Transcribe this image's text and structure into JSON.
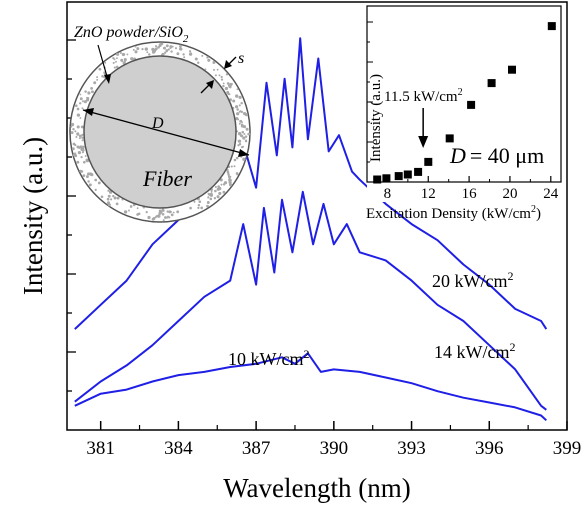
{
  "chart_data": [
    {
      "type": "line",
      "title": "",
      "xlabel": "Wavelength (nm)",
      "ylabel": "Intensity (a.u.)",
      "xlim": [
        379.7,
        399.0
      ],
      "ylim": [
        0,
        5.3
      ],
      "x_ticks": [
        381,
        384,
        387,
        390,
        393,
        396,
        399
      ],
      "y_ticks_labeled": false,
      "grid": false,
      "series": [
        {
          "name": "10 kW/cm2",
          "label_text": "10 kW/cm",
          "label_sup": "2",
          "x": [
            380.0,
            381.0,
            382.0,
            383.0,
            384.0,
            385.0,
            386.0,
            387.0,
            388.0,
            388.5,
            389.0,
            389.5,
            390.0,
            391.0,
            392.0,
            393.0,
            394.0,
            395.0,
            396.0,
            397.0,
            398.0,
            398.2
          ],
          "y": [
            0.3,
            0.45,
            0.5,
            0.6,
            0.68,
            0.72,
            0.78,
            0.82,
            0.9,
            0.82,
            0.95,
            0.72,
            0.75,
            0.72,
            0.65,
            0.58,
            0.48,
            0.4,
            0.34,
            0.28,
            0.18,
            0.12
          ]
        },
        {
          "name": "14 kW/cm2",
          "label_text": "14 kW/cm",
          "label_sup": "2",
          "x": [
            380.0,
            381.0,
            382.0,
            383.0,
            384.0,
            385.0,
            386.0,
            386.5,
            387.0,
            387.3,
            387.7,
            388.0,
            388.4,
            388.8,
            389.2,
            389.6,
            390.0,
            390.5,
            391.0,
            392.0,
            393.0,
            394.0,
            395.0,
            396.0,
            397.0,
            398.0,
            398.2
          ],
          "y": [
            0.35,
            0.6,
            0.8,
            1.05,
            1.35,
            1.65,
            1.85,
            2.55,
            1.8,
            2.75,
            1.95,
            2.85,
            2.2,
            2.95,
            2.3,
            2.8,
            2.3,
            2.55,
            2.2,
            2.1,
            1.85,
            1.55,
            1.35,
            1.05,
            0.75,
            0.3,
            0.25
          ]
        },
        {
          "name": "20 kW/cm2",
          "label_text": "20 kW/cm",
          "label_sup": "2",
          "x": [
            380.0,
            381.0,
            382.0,
            383.0,
            384.0,
            385.0,
            386.0,
            386.5,
            387.0,
            387.4,
            387.8,
            388.1,
            388.4,
            388.7,
            389.0,
            389.4,
            389.8,
            390.2,
            390.7,
            391.0,
            392.0,
            393.0,
            394.0,
            395.0,
            396.0,
            397.0,
            398.0,
            398.2
          ],
          "y": [
            1.25,
            1.55,
            1.85,
            2.3,
            2.6,
            2.9,
            3.1,
            3.55,
            3.0,
            4.3,
            3.4,
            4.35,
            3.5,
            4.85,
            3.6,
            4.6,
            3.45,
            3.65,
            3.2,
            3.1,
            2.8,
            2.55,
            2.35,
            2.05,
            1.8,
            1.5,
            1.35,
            1.25
          ]
        }
      ]
    },
    {
      "type": "scatter",
      "title": "",
      "xlabel": "Excitation Density (kW/cm",
      "xlabel_sup": "2",
      "xlabel_close": ")",
      "ylabel": "Intensity (a.u.)",
      "xlim": [
        6,
        25
      ],
      "ylim": [
        0,
        10.5
      ],
      "x_ticks": [
        8,
        12,
        16,
        20,
        24
      ],
      "y_ticks_labeled": false,
      "grid": false,
      "x": [
        7.0,
        7.9,
        9.1,
        10.0,
        11.0,
        12.0,
        14.1,
        16.2,
        18.2,
        20.2,
        24.1
      ],
      "y": [
        0.15,
        0.22,
        0.35,
        0.45,
        0.6,
        1.2,
        2.6,
        4.6,
        5.9,
        6.7,
        9.3
      ],
      "annotation_text": "11.5 kW/cm",
      "annotation_sup": "2",
      "annotation_x": 11.5,
      "parameter_label": "= 40 μm",
      "parameter_symbol": "D"
    }
  ],
  "diagram": {
    "label_powder": "ZnO powder/SiO",
    "label_powder_sub": "2",
    "label_s": "s",
    "label_d": "D",
    "label_fiber": "Fiber"
  },
  "colors": {
    "series_line": "#1f1fe6",
    "axes": "#000000",
    "fiber_fill": "#cfcfcf",
    "powder_dots": "#a9a9a9",
    "inset_marker": "#000000"
  }
}
